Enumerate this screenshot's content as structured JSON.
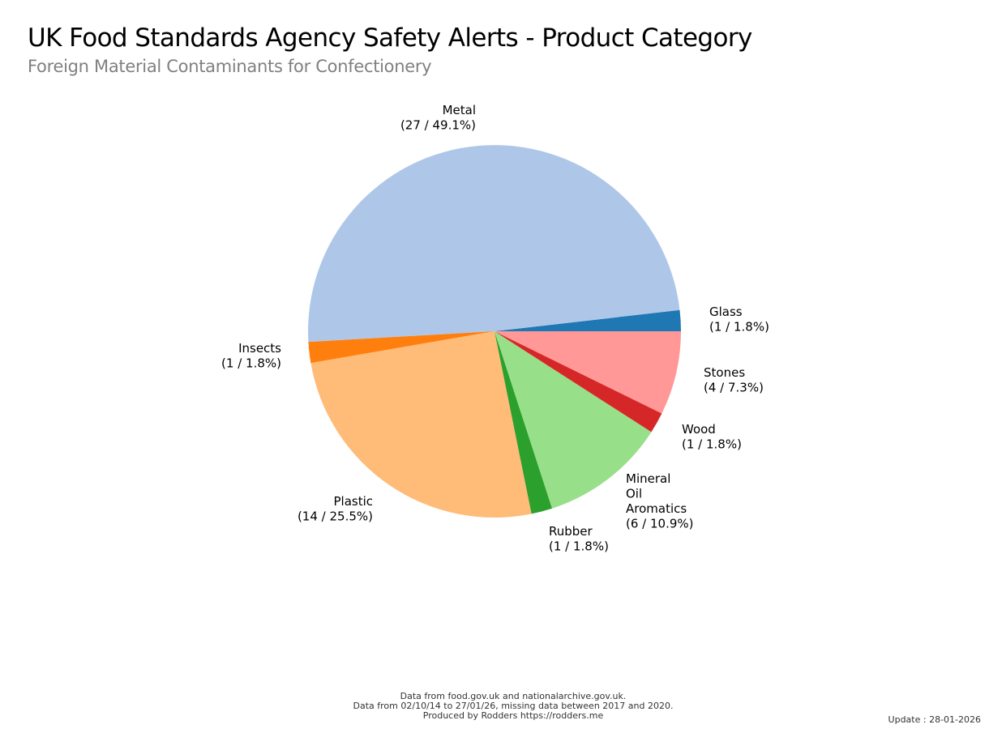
{
  "title": "UK Food Standards Agency Safety Alerts - Product Category",
  "subtitle": "Foreign Material Contaminants for Confectionery",
  "chart_data": {
    "type": "pie",
    "title": "UK Food Standards Agency Safety Alerts - Product Category",
    "subtitle": "Foreign Material Contaminants for Confectionery",
    "slices": [
      {
        "label": "Glass",
        "value": 1,
        "percent": "1.8%",
        "color": "#1f77b4"
      },
      {
        "label": "Metal",
        "value": 27,
        "percent": "49.1%",
        "color": "#aec7e8"
      },
      {
        "label": "Insects",
        "value": 1,
        "percent": "1.8%",
        "color": "#ff7f0e"
      },
      {
        "label": "Plastic",
        "value": 14,
        "percent": "25.5%",
        "color": "#ffbb78"
      },
      {
        "label": "Rubber",
        "value": 1,
        "percent": "1.8%",
        "color": "#2ca02c"
      },
      {
        "label": "Mineral Oil Aromatics",
        "value": 6,
        "percent": "10.9%",
        "color": "#98df8a"
      },
      {
        "label": "Wood",
        "value": 1,
        "percent": "1.8%",
        "color": "#d62728"
      },
      {
        "label": "Stones",
        "value": 4,
        "percent": "7.3%",
        "color": "#ff9896"
      }
    ],
    "start_angle_deg": 0,
    "direction": "counterclockwise"
  },
  "footer": {
    "line1": "Data from food.gov.uk and nationalarchive.gov.uk.",
    "line2": "Data from 02/10/14 to 27/01/26, missing data between 2017 and 2020.",
    "line3": "Produced by Rodders https://rodders.me"
  },
  "update": "Update : 28-01-2026"
}
